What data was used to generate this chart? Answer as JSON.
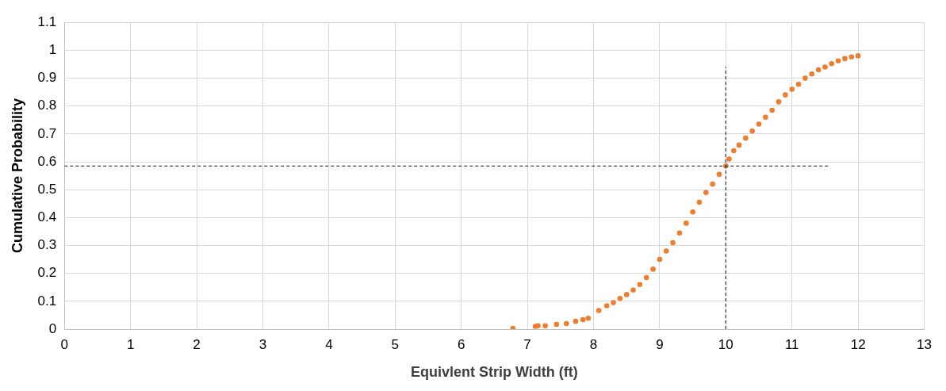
{
  "chart_data": {
    "type": "scatter",
    "xlabel": "Equivlent Strip Width (ft)",
    "ylabel": "Cumulative Probability",
    "xlim": [
      0,
      13
    ],
    "xticks": [
      0,
      1,
      2,
      3,
      4,
      5,
      6,
      7,
      8,
      9,
      10,
      11,
      12,
      13
    ],
    "ylim": [
      0,
      1.1
    ],
    "yticks": [
      0,
      0.1,
      0.2,
      0.3,
      0.4,
      0.5,
      0.6,
      0.7,
      0.8,
      0.9,
      1,
      1.1
    ],
    "grid": true,
    "legend": false,
    "marker": "circle",
    "series": [
      {
        "color": "#ed7d31",
        "x": [
          6.78,
          7.12,
          7.16,
          7.27,
          7.44,
          7.59,
          7.73,
          7.84,
          7.92,
          8.08,
          8.2,
          8.3,
          8.4,
          8.5,
          8.6,
          8.7,
          8.8,
          8.9,
          9.0,
          9.1,
          9.2,
          9.3,
          9.4,
          9.5,
          9.6,
          9.7,
          9.8,
          9.9,
          10.0,
          10.05,
          10.12,
          10.2,
          10.3,
          10.4,
          10.5,
          10.6,
          10.7,
          10.8,
          10.9,
          11.0,
          11.1,
          11.2,
          11.3,
          11.4,
          11.5,
          11.6,
          11.7,
          11.8,
          11.9,
          12.0
        ],
        "values": [
          0.003,
          0.01,
          0.012,
          0.012,
          0.017,
          0.02,
          0.028,
          0.034,
          0.039,
          0.067,
          0.084,
          0.095,
          0.11,
          0.124,
          0.14,
          0.16,
          0.185,
          0.215,
          0.25,
          0.28,
          0.31,
          0.345,
          0.38,
          0.42,
          0.455,
          0.49,
          0.52,
          0.555,
          0.585,
          0.61,
          0.64,
          0.66,
          0.685,
          0.71,
          0.735,
          0.76,
          0.785,
          0.815,
          0.84,
          0.86,
          0.878,
          0.9,
          0.915,
          0.93,
          0.94,
          0.952,
          0.962,
          0.97,
          0.976,
          0.98
        ]
      },
      {
        "type": "line",
        "color": "#404040",
        "line_style": "dashed",
        "marker": "none",
        "x": [
          0,
          11.55
        ],
        "values": [
          0.585,
          0.585
        ]
      },
      {
        "type": "line",
        "color": "#404040",
        "line_style": "dashed",
        "marker": "none",
        "x": [
          10,
          10
        ],
        "values": [
          0,
          0.94
        ]
      }
    ]
  }
}
